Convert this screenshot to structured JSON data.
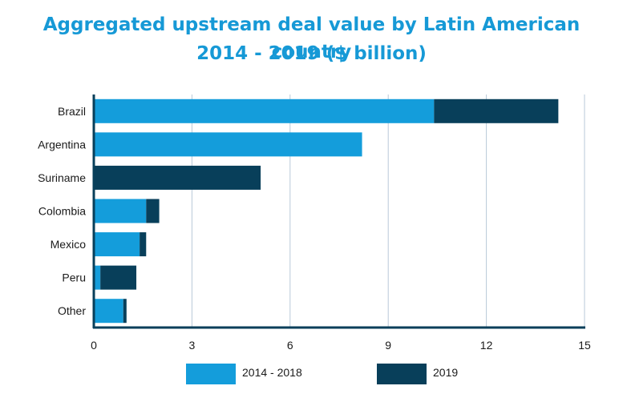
{
  "chart_data": {
    "type": "bar",
    "orientation": "horizontal",
    "stacked": true,
    "title": "Aggregated upstream deal value by Latin American country",
    "subtitle": "2014 - 2019 ($ billion)",
    "categories": [
      "Brazil",
      "Argentina",
      "Suriname",
      "Colombia",
      "Mexico",
      "Peru",
      "Other"
    ],
    "series": [
      {
        "name": "2014 - 2018",
        "color": "#149ddb",
        "values": [
          10.4,
          8.2,
          0,
          1.6,
          1.4,
          0.2,
          0.9
        ]
      },
      {
        "name": "2019",
        "color": "#083f5a",
        "values": [
          3.8,
          0,
          5.1,
          0.4,
          0.2,
          1.1,
          0.1
        ]
      }
    ],
    "xlim": [
      0,
      15
    ],
    "xticks": [
      "0",
      "3",
      "6",
      "9",
      "12",
      "15"
    ],
    "grid": "vertical",
    "legend": "bottom"
  }
}
